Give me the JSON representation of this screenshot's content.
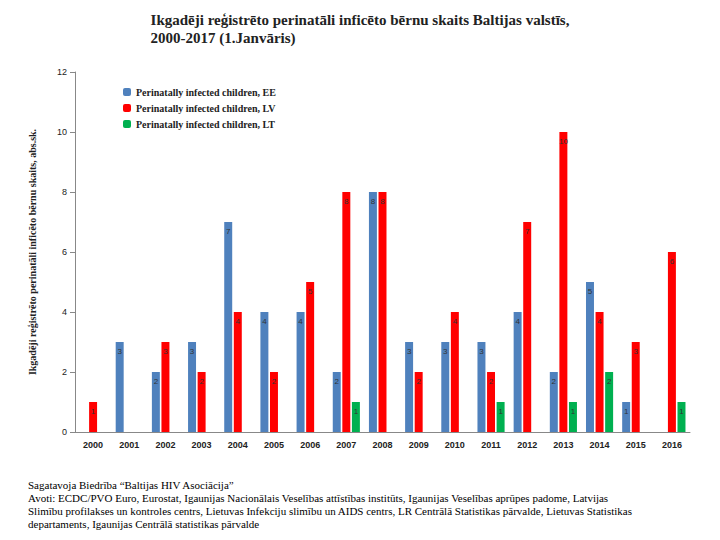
{
  "chart_data": {
    "type": "bar",
    "title": "Ikgadēji reģistrēto perinatāli inficēto bērnu skaits Baltijas valstīs,\n2000-2017 (1.Janvāris)",
    "y_label": "Ikgadēji reģistrēto perinatāli inficēto bērnu skaits, abs.sk.",
    "categories": [
      "2000",
      "2001",
      "2002",
      "2003",
      "2004",
      "2005",
      "2006",
      "2007",
      "2008",
      "2009",
      "2010",
      "2011",
      "2012",
      "2013",
      "2014",
      "2015",
      "2016"
    ],
    "series": [
      {
        "name": "Perinatally infected children, EE",
        "color": "#4f81bd",
        "values": [
          null,
          3,
          2,
          3,
          7,
          4,
          4,
          2,
          8,
          3,
          3,
          3,
          4,
          2,
          5,
          1,
          null
        ]
      },
      {
        "name": "Perinatally infected children, LV",
        "color": "#ff0000",
        "values": [
          1,
          null,
          3,
          2,
          4,
          2,
          5,
          8,
          8,
          2,
          4,
          2,
          7,
          10,
          4,
          3,
          6
        ]
      },
      {
        "name": "Perinatally infected children, LT",
        "color": "#00b050",
        "values": [
          null,
          null,
          null,
          null,
          null,
          null,
          null,
          1,
          null,
          null,
          null,
          1,
          null,
          1,
          2,
          null,
          1
        ]
      }
    ],
    "ylim": [
      0,
      12
    ],
    "yticks": [
      0,
      2,
      4,
      6,
      8,
      10,
      12
    ],
    "grid": false,
    "legend": "upper left",
    "data_labels": true,
    "annotations": [
      "Sagatavoja Biedrība “Baltijas HIV Asociācija”",
      "Avoti: ECDC/PVO Euro, Eurostat, Igaunijas Nacionālais Veselības attīstības institūts, Igaunijas Veselības aprūpes padome, Latvijas Slimību profilakses un kontroles centrs, Lietuvas Infekciju slimību un AIDS centrs, LR Centrālā Statistikas pārvalde, Lietuvas Statistikas departaments, Igaunijas Centrālā statistikas pārvalde"
    ]
  }
}
